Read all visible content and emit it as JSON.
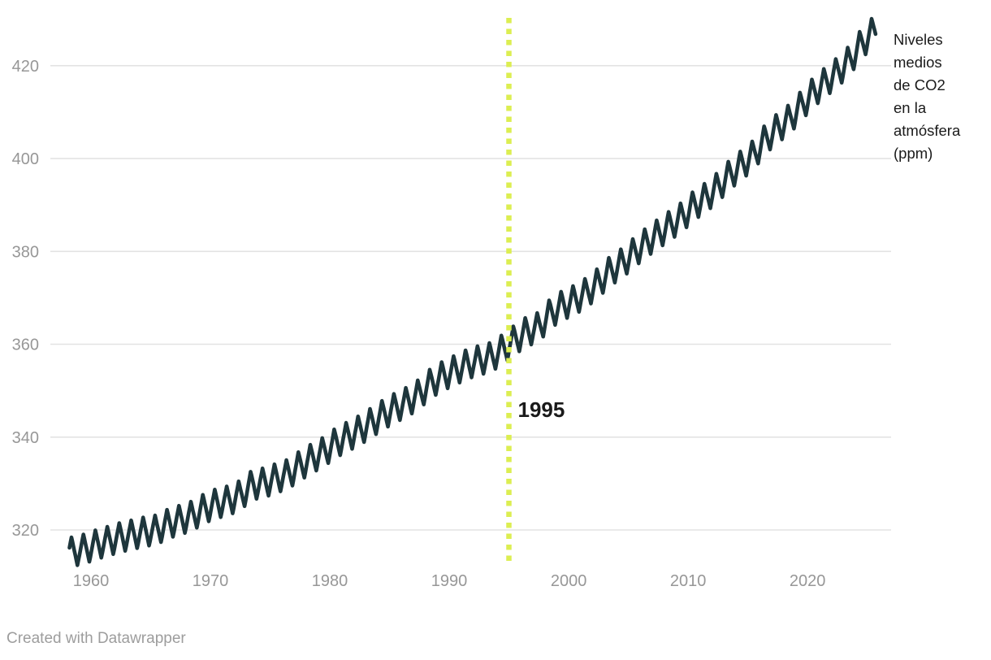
{
  "chart_data": {
    "type": "line",
    "title": "",
    "series_label": "Niveles\nmedios\nde CO2\nen la\natmósfera\n(ppm)",
    "unit": "ppm",
    "x_ticks": [
      1960,
      1970,
      1980,
      1990,
      2000,
      2010,
      2020
    ],
    "y_ticks": [
      320,
      340,
      360,
      380,
      400,
      420
    ],
    "xlim": [
      1956.6,
      2027.0
    ],
    "ylim": [
      311.6,
      432.4
    ],
    "grid": true,
    "legend_position": "none",
    "line_color": "#1e363c",
    "annotation_line": {
      "year": 1995,
      "label": "1995",
      "color": "#dcee51",
      "style": "dotted"
    },
    "seasonal_cycle": {
      "amplitude_ppm": 3.2,
      "peak_month_frac": 0.37,
      "trough_month_frac": 0.87
    },
    "data_start": 1958.2,
    "data_end": 2025.75,
    "series": [
      {
        "name": "Niveles medios de CO2 en la atmósfera (ppm)",
        "annual_means": [
          [
            1958,
            315.34
          ],
          [
            1959,
            315.97
          ],
          [
            1960,
            316.91
          ],
          [
            1961,
            317.64
          ],
          [
            1962,
            318.45
          ],
          [
            1963,
            318.99
          ],
          [
            1964,
            319.62
          ],
          [
            1965,
            320.04
          ],
          [
            1966,
            321.37
          ],
          [
            1967,
            322.18
          ],
          [
            1968,
            323.05
          ],
          [
            1969,
            324.62
          ],
          [
            1970,
            325.68
          ],
          [
            1971,
            326.32
          ],
          [
            1972,
            327.46
          ],
          [
            1973,
            329.68
          ],
          [
            1974,
            330.19
          ],
          [
            1975,
            331.12
          ],
          [
            1976,
            332.03
          ],
          [
            1977,
            333.84
          ],
          [
            1978,
            335.41
          ],
          [
            1979,
            336.84
          ],
          [
            1980,
            338.76
          ],
          [
            1981,
            340.12
          ],
          [
            1982,
            341.48
          ],
          [
            1983,
            343.15
          ],
          [
            1984,
            344.87
          ],
          [
            1985,
            346.35
          ],
          [
            1986,
            347.61
          ],
          [
            1987,
            349.31
          ],
          [
            1988,
            351.69
          ],
          [
            1989,
            353.2
          ],
          [
            1990,
            354.45
          ],
          [
            1991,
            355.7
          ],
          [
            1992,
            356.54
          ],
          [
            1993,
            357.21
          ],
          [
            1994,
            358.96
          ],
          [
            1995,
            360.97
          ],
          [
            1996,
            362.74
          ],
          [
            1997,
            363.7
          ],
          [
            1998,
            366.7
          ],
          [
            1999,
            368.38
          ],
          [
            2000,
            369.55
          ],
          [
            2001,
            371.14
          ],
          [
            2002,
            373.28
          ],
          [
            2003,
            375.8
          ],
          [
            2004,
            377.52
          ],
          [
            2005,
            379.8
          ],
          [
            2006,
            381.9
          ],
          [
            2007,
            383.79
          ],
          [
            2008,
            385.6
          ],
          [
            2009,
            387.43
          ],
          [
            2010,
            389.9
          ],
          [
            2011,
            391.65
          ],
          [
            2012,
            393.85
          ],
          [
            2013,
            396.52
          ],
          [
            2014,
            398.65
          ],
          [
            2015,
            400.83
          ],
          [
            2016,
            404.24
          ],
          [
            2017,
            406.55
          ],
          [
            2018,
            408.52
          ],
          [
            2019,
            411.44
          ],
          [
            2020,
            414.24
          ],
          [
            2021,
            416.45
          ],
          [
            2022,
            418.56
          ],
          [
            2023,
            421.08
          ],
          [
            2024,
            424.61
          ],
          [
            2025,
            427.3
          ]
        ]
      }
    ]
  },
  "colors": {
    "background": "#ffffff",
    "grid": "#e3e3e3",
    "tick_label": "#979797",
    "annotation_label": "#1a1a1a",
    "credit_text": "#9d9d9d"
  },
  "footer": {
    "credit": "Created with Datawrapper"
  }
}
